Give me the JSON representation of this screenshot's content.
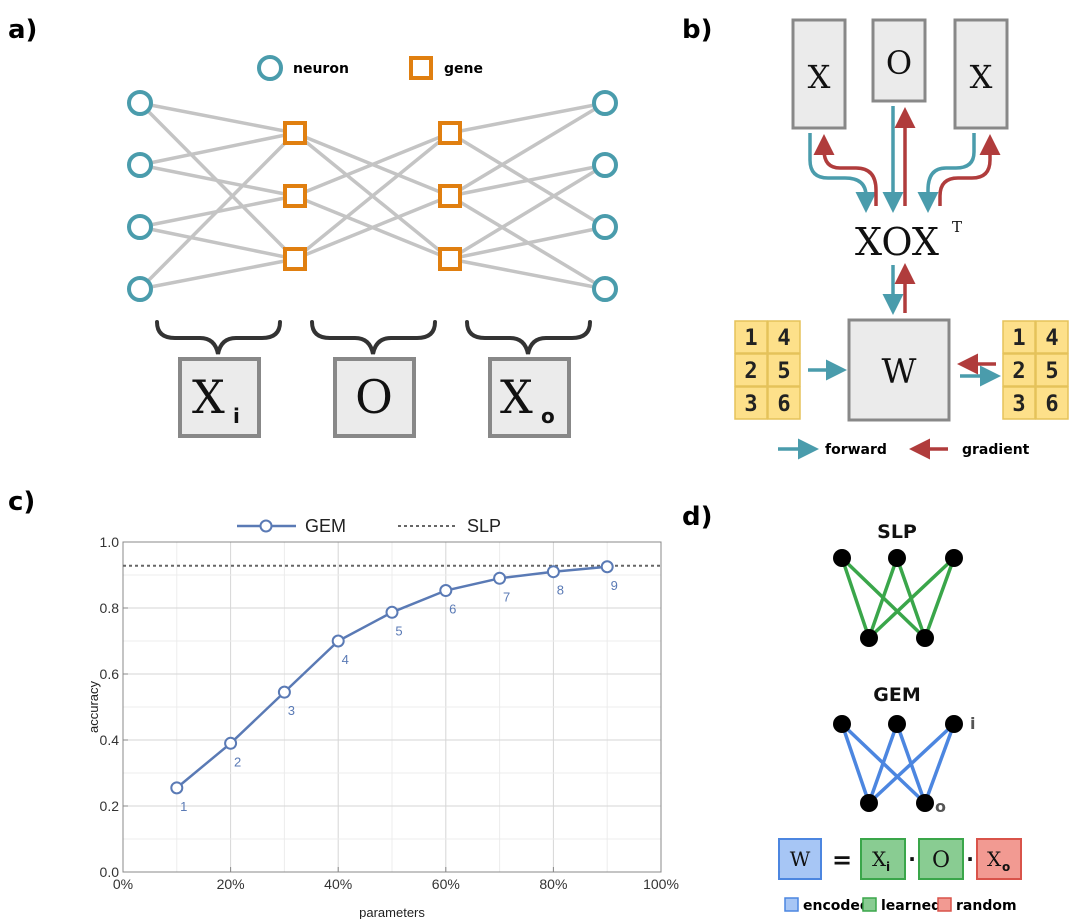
{
  "panels": {
    "a": "a)",
    "b": "b)",
    "c": "c)",
    "d": "d)"
  },
  "panel_a": {
    "legend": {
      "neuron": "neuron",
      "gene": "gene"
    },
    "boxes": [
      {
        "main": "X",
        "sub": "i"
      },
      {
        "main": "O",
        "sub": ""
      },
      {
        "main": "X",
        "sub": "o"
      }
    ],
    "colors": {
      "neuron": "#4a9cac",
      "gene": "#e07f10",
      "edge": "#c4c4c4"
    }
  },
  "panel_b": {
    "boxes": [
      "X",
      "O",
      "X"
    ],
    "product": {
      "main": "XOX",
      "sup": "T"
    },
    "w_box": "W",
    "digits": [
      [
        "1",
        "4"
      ],
      [
        "2",
        "5"
      ],
      [
        "3",
        "6"
      ]
    ],
    "legend": {
      "forward": "forward",
      "gradient": "gradient"
    },
    "colors": {
      "forward": "#4a9cac",
      "gradient": "#b03c3c",
      "digit_bg": "#fde08a"
    }
  },
  "panel_c": {
    "legend": {
      "gem": "GEM",
      "slp": "SLP"
    }
  },
  "chart_data": {
    "type": "line",
    "xlabel": "parameters",
    "ylabel": "accuracy",
    "xlim": [
      0,
      100
    ],
    "ylim": [
      0,
      1.0
    ],
    "x_ticks": [
      "0%",
      "20%",
      "40%",
      "60%",
      "80%",
      "100%"
    ],
    "y_ticks": [
      "0.0",
      "0.2",
      "0.4",
      "0.6",
      "0.8",
      "1.0"
    ],
    "grid": true,
    "legend_position": "top",
    "series": [
      {
        "name": "GEM",
        "x": [
          10,
          20,
          30,
          40,
          50,
          60,
          70,
          80,
          90
        ],
        "values": [
          0.255,
          0.39,
          0.545,
          0.7,
          0.787,
          0.853,
          0.89,
          0.91,
          0.925
        ],
        "point_labels": [
          "1",
          "2",
          "3",
          "4",
          "5",
          "6",
          "7",
          "8",
          "9"
        ],
        "color": "#5a7ab5"
      },
      {
        "name": "SLP",
        "constant": 0.928,
        "color": "#666666",
        "style": "dashed"
      }
    ]
  },
  "panel_d": {
    "slp_title": "SLP",
    "gem_title": "GEM",
    "node_labels": {
      "input": "i",
      "output": "o"
    },
    "equation": {
      "w": "W",
      "eq": "=",
      "dot": "·",
      "terms": [
        {
          "main": "X",
          "sub": "i"
        },
        {
          "main": "O",
          "sub": ""
        },
        {
          "main": "X",
          "sub": "o"
        }
      ]
    },
    "legend": {
      "encoded": "encoded",
      "learned": "learned",
      "random": "random"
    },
    "colors": {
      "slp_edge": "#3aa64a",
      "gem_edge": "#4c86e0",
      "encoded": "#78a8f0",
      "learned": "#72c47c",
      "random": "#f07a72"
    }
  }
}
